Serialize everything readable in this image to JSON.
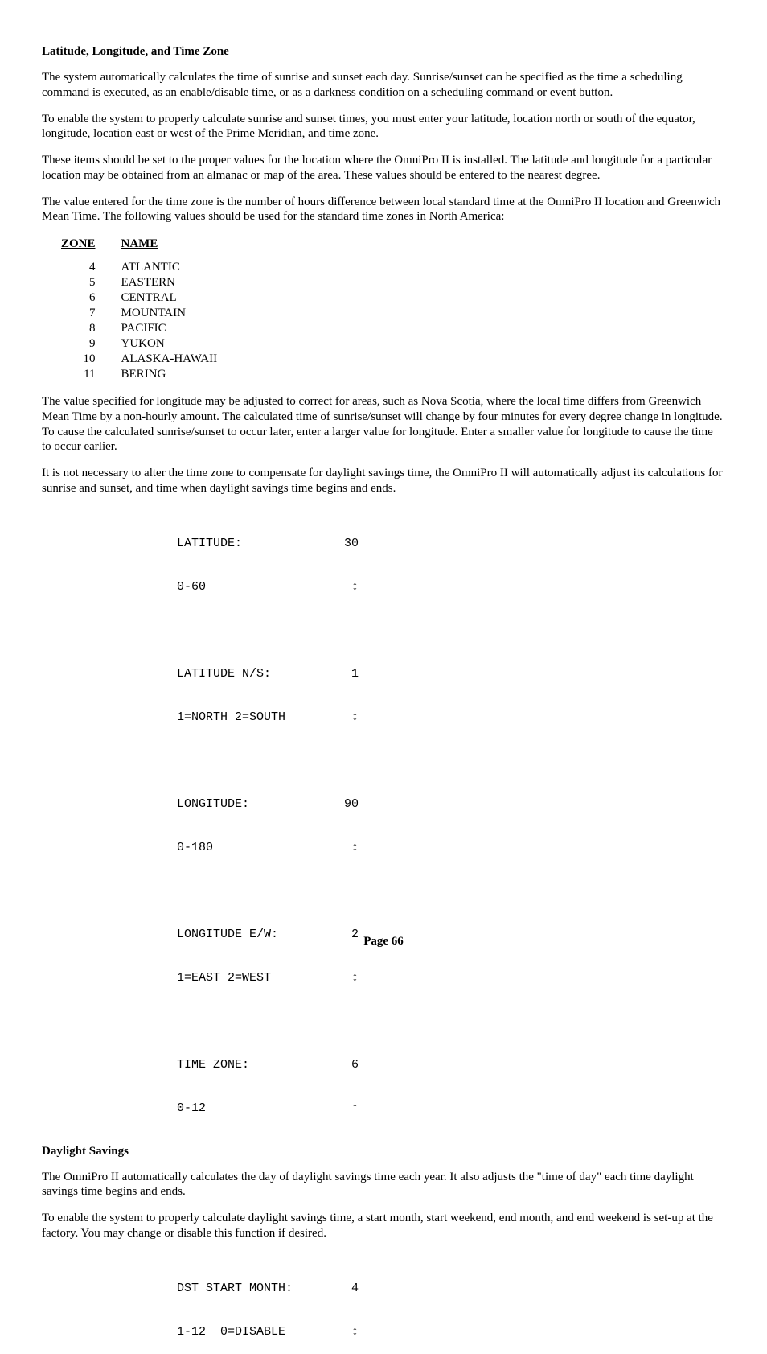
{
  "section1": {
    "title": "Latitude, Longitude, and Time Zone",
    "p1": "The system automatically calculates the time of sunrise and sunset each day.  Sunrise/sunset can be specified as the time a scheduling command is executed, as an enable/disable time, or as a darkness condition on a scheduling command or event button.",
    "p2": "To enable the system to properly calculate sunrise and sunset times, you must enter your latitude, location north or south of the equator, longitude, location east or west of the Prime Meridian, and time zone.",
    "p3": "These items should be set to the proper values for the location where the OmniPro II is installed.  The latitude and longitude for a particular location may be obtained from an almanac or map of the area.  These values should be entered to the nearest degree.",
    "p4": "The value entered for the time zone is the number of hours difference between local standard time at the OmniPro II location and Greenwich Mean Time.  The following values should be used for the standard time zones in North America:",
    "zone_header": "ZONE",
    "name_header": "NAME",
    "zones": [
      {
        "num": "4",
        "name": "ATLANTIC"
      },
      {
        "num": "5",
        "name": "EASTERN"
      },
      {
        "num": "6",
        "name": "CENTRAL"
      },
      {
        "num": "7",
        "name": "MOUNTAIN"
      },
      {
        "num": "8",
        "name": "PACIFIC"
      },
      {
        "num": "9",
        "name": "YUKON"
      },
      {
        "num": "10",
        "name": "ALASKA-HAWAII"
      },
      {
        "num": "11",
        "name": "BERING"
      }
    ],
    "p5": "The value specified for longitude may be adjusted to correct for areas, such as Nova Scotia, where the local time differs from Greenwich Mean Time by a non-hourly amount.  The calculated time of sunrise/sunset will change by four minutes for every degree change in longitude.  To cause the calculated sunrise/sunset to occur later, enter a larger value for longitude.  Enter a smaller value for longitude to cause the time to occur earlier.",
    "p6": "It is not necessary to alter the time zone to compensate for daylight savings time, the OmniPro II will automatically adjust its calculations for sunrise and sunset, and time when daylight savings time begins and ends."
  },
  "settings": [
    {
      "label1": "LATITUDE:",
      "val": "30",
      "label2": "0-60",
      "arrow": "↕"
    },
    {
      "label1": "LATITUDE N/S:",
      "val": "1",
      "label2": "1=NORTH 2=SOUTH",
      "arrow": "↕"
    },
    {
      "label1": "LONGITUDE:",
      "val": "90",
      "label2": "0-180",
      "arrow": "↕"
    },
    {
      "label1": "LONGITUDE E/W:",
      "val": "2",
      "label2": "1=EAST 2=WEST",
      "arrow": "↕"
    },
    {
      "label1": "TIME ZONE:",
      "val": "6",
      "label2": "0-12",
      "arrow": "↑"
    }
  ],
  "section2": {
    "title": "Daylight Savings",
    "p1": "The OmniPro II automatically calculates the day of daylight savings time each year.  It also adjusts the \"time of day\" each time daylight savings time begins and ends.",
    "p2": "To enable the system to properly calculate daylight savings time, a start month, start weekend, end month, and end weekend is set-up at the factory.  You may change or disable this function if desired."
  },
  "settings2": [
    {
      "label1": "DST START MONTH:",
      "val": "4",
      "label2": "1-12  0=DISABLE",
      "arrow": "↕"
    }
  ],
  "footer": "Page 66"
}
